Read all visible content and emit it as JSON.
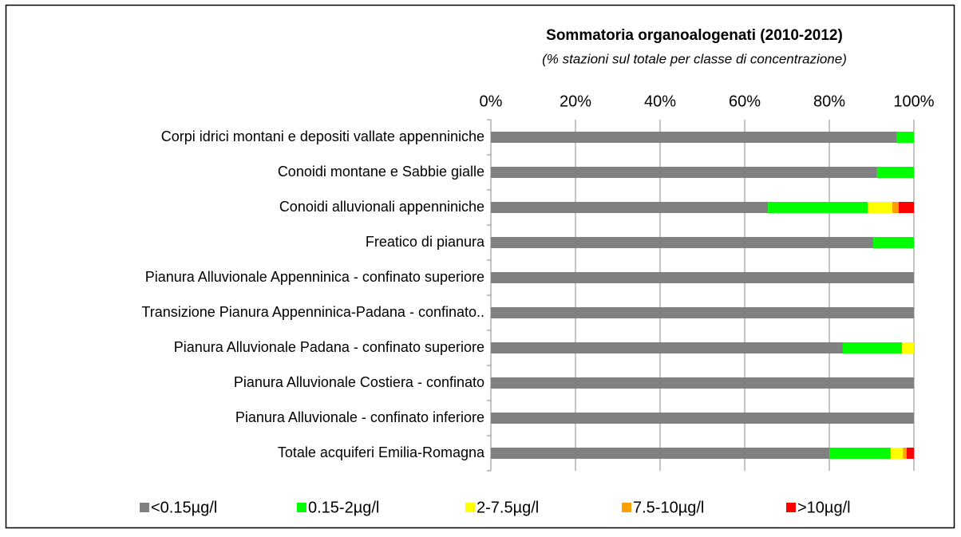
{
  "chart_data": {
    "type": "stacked-barh",
    "title": "Sommatoria organoalogenati (2010-2012)",
    "subtitle": "(% stazioni sul totale per classe di concentrazione)",
    "categories": [
      "Corpi idrici montani e depositi vallate appenniniche",
      "Conoidi montane e Sabbie gialle",
      "Conoidi alluvionali appenniniche",
      "Freatico di pianura",
      "Pianura Alluvionale Appenninica - confinato superiore",
      "Transizione Pianura Appenninica-Padana - confinato..",
      "Pianura Alluvionale Padana - confinato superiore",
      "Pianura Alluvionale Costiera - confinato",
      "Pianura Alluvionale - confinato inferiore",
      "Totale acquiferi Emilia-Romagna"
    ],
    "series": [
      {
        "name": "<0.15µg/l",
        "color": "#808080",
        "values": [
          96,
          91.3,
          65.5,
          90.4,
          100,
          100,
          83.2,
          100,
          100,
          80
        ]
      },
      {
        "name": "0.15-2µg/l",
        "color": "#00ff00",
        "values": [
          4,
          8.7,
          23.6,
          9.6,
          0,
          0,
          14,
          0,
          0,
          14.5
        ]
      },
      {
        "name": "2-7.5µg/l",
        "color": "#ffff00",
        "values": [
          0,
          0,
          5.8,
          0,
          0,
          0,
          2.8,
          0,
          0,
          2.9
        ]
      },
      {
        "name": "7.5-10µg/l",
        "color": "#ffa000",
        "values": [
          0,
          0,
          1.5,
          0,
          0,
          0,
          0,
          0,
          0,
          0.9
        ]
      },
      {
        "name": ">10µg/l",
        "color": "#ff0000",
        "values": [
          0,
          0,
          3.6,
          0,
          0,
          0,
          0,
          0,
          0,
          1.7
        ]
      }
    ],
    "xlim": [
      0,
      100
    ],
    "xticks": [
      {
        "value": 0,
        "label": "0%"
      },
      {
        "value": 20,
        "label": "20%"
      },
      {
        "value": 40,
        "label": "40%"
      },
      {
        "value": 60,
        "label": "60%"
      },
      {
        "value": 80,
        "label": "80%"
      },
      {
        "value": 100,
        "label": "100%"
      }
    ],
    "grid": true,
    "legend": "bottom"
  }
}
